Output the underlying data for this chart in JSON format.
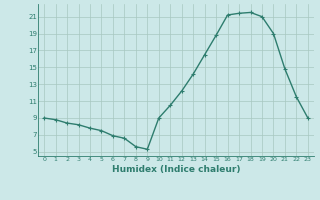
{
  "x": [
    0,
    1,
    2,
    3,
    4,
    5,
    6,
    7,
    8,
    9,
    10,
    11,
    12,
    13,
    14,
    15,
    16,
    17,
    18,
    19,
    20,
    21,
    22,
    23
  ],
  "y": [
    9.0,
    8.8,
    8.4,
    8.2,
    7.8,
    7.5,
    6.9,
    6.6,
    5.6,
    5.3,
    9.0,
    10.5,
    12.2,
    14.2,
    16.5,
    18.8,
    21.2,
    21.4,
    21.5,
    21.0,
    19.0,
    14.8,
    11.5,
    9.0
  ],
  "line_color": "#2e7d6e",
  "marker": "+",
  "marker_size": 3.5,
  "linewidth": 1.0,
  "background_color": "#cce8e8",
  "grid_color": "#a8c8c0",
  "xlabel": "Humidex (Indice chaleur)",
  "ylim": [
    4.5,
    22.5
  ],
  "xlim": [
    -0.5,
    23.5
  ],
  "yticks": [
    5,
    7,
    9,
    11,
    13,
    15,
    17,
    19,
    21
  ],
  "xticks": [
    0,
    1,
    2,
    3,
    4,
    5,
    6,
    7,
    8,
    9,
    10,
    11,
    12,
    13,
    14,
    15,
    16,
    17,
    18,
    19,
    20,
    21,
    22,
    23
  ]
}
